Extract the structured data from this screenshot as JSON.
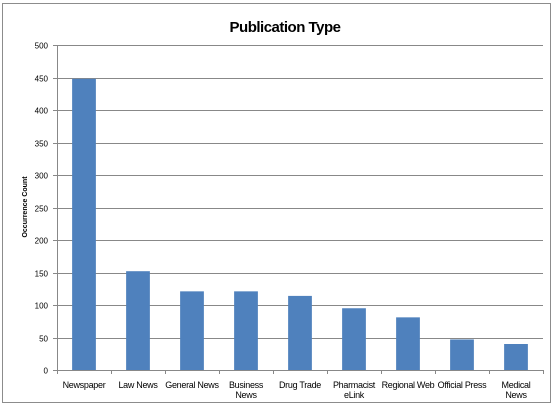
{
  "chart_data": {
    "type": "bar",
    "title": "Publication Type",
    "xlabel": "",
    "ylabel": "Occurrence Count",
    "ylim": [
      0,
      500
    ],
    "yticks": [
      0,
      50,
      100,
      150,
      200,
      250,
      300,
      350,
      400,
      450,
      500
    ],
    "grid": true,
    "legend": "none",
    "bar_color": "#4f81bd",
    "categories": [
      [
        "Newspaper"
      ],
      [
        "Law News"
      ],
      [
        "General News"
      ],
      [
        "Business",
        "News"
      ],
      [
        "Drug Trade"
      ],
      [
        "Pharmacist",
        "eLink"
      ],
      [
        "Regional Web"
      ],
      [
        "Official Press"
      ],
      [
        "Medical",
        "News"
      ]
    ],
    "values": [
      448,
      152,
      121,
      121,
      114,
      95,
      81,
      47,
      40
    ]
  }
}
